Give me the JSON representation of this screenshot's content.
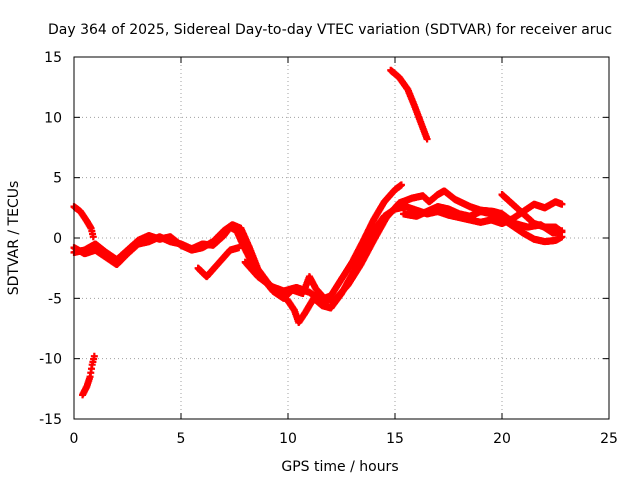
{
  "chart_data": {
    "type": "scatter",
    "title": "Day 364 of 2025, Sidereal Day-to-day VTEC variation (SDTVAR) for receiver aruc",
    "xlabel": "GPS time / hours",
    "ylabel": "SDTVAR / TECUs",
    "xlim": [
      0,
      25
    ],
    "ylim": [
      -15,
      15
    ],
    "xticks": [
      0,
      5,
      10,
      15,
      20,
      25
    ],
    "yticks": [
      -15,
      -10,
      -5,
      0,
      5,
      10,
      15
    ],
    "grid": true,
    "marker": "plus",
    "color": "#ff0000",
    "series": [
      {
        "name": "track-a",
        "points": [
          [
            0,
            2.6
          ],
          [
            0.3,
            2.2
          ],
          [
            0.6,
            1.4
          ],
          [
            0.8,
            0.8
          ],
          [
            0.9,
            0.1
          ]
        ]
      },
      {
        "name": "track-b",
        "points": [
          [
            0.4,
            -13
          ],
          [
            0.6,
            -12.3
          ],
          [
            0.75,
            -11.5
          ],
          [
            0.85,
            -10.5
          ],
          [
            0.95,
            -9.8
          ]
        ]
      },
      {
        "name": "track-c",
        "points": [
          [
            0,
            -0.8
          ],
          [
            0.5,
            -1.3
          ],
          [
            1,
            -1.0
          ],
          [
            1.5,
            -1.6
          ],
          [
            2,
            -2.2
          ],
          [
            2.5,
            -1.3
          ],
          [
            3,
            -0.5
          ],
          [
            3.5,
            -0.3
          ],
          [
            4,
            0.1
          ],
          [
            4.5,
            -0.3
          ],
          [
            5,
            -0.5
          ],
          [
            5.5,
            -0.9
          ],
          [
            6,
            -0.5
          ],
          [
            6.5,
            -0.6
          ],
          [
            7,
            0.2
          ],
          [
            7.3,
            0.9
          ],
          [
            7.6,
            0.6
          ],
          [
            7.9,
            -0.6
          ],
          [
            8.3,
            -2.0
          ],
          [
            8.8,
            -3.3
          ],
          [
            9.3,
            -4.4
          ],
          [
            9.8,
            -5.0
          ],
          [
            10.2,
            -4.3
          ],
          [
            10.7,
            -4.6
          ],
          [
            11,
            -3.2
          ],
          [
            11.3,
            -4.2
          ],
          [
            11.7,
            -5.0
          ],
          [
            12,
            -4.8
          ],
          [
            12.5,
            -3.4
          ],
          [
            13,
            -2.0
          ],
          [
            13.5,
            -0.3
          ],
          [
            14,
            1.5
          ],
          [
            14.5,
            3.0
          ],
          [
            15,
            4.0
          ],
          [
            15.3,
            4.4
          ]
        ]
      },
      {
        "name": "track-d",
        "points": [
          [
            0,
            -1.2
          ],
          [
            0.5,
            -1.0
          ],
          [
            1,
            -0.5
          ],
          [
            1.5,
            -1.2
          ],
          [
            2,
            -1.8
          ],
          [
            2.5,
            -1.0
          ],
          [
            3,
            -0.2
          ],
          [
            3.5,
            0.2
          ],
          [
            4,
            -0.1
          ],
          [
            4.5,
            0.1
          ],
          [
            5,
            -0.6
          ],
          [
            5.5,
            -1.0
          ],
          [
            6,
            -0.8
          ],
          [
            6.5,
            -0.3
          ],
          [
            7,
            0.6
          ],
          [
            7.4,
            1.1
          ],
          [
            7.8,
            0.8
          ],
          [
            8.2,
            -0.8
          ],
          [
            8.6,
            -2.6
          ],
          [
            9.1,
            -3.8
          ],
          [
            9.6,
            -4.6
          ],
          [
            10,
            -5.2
          ],
          [
            10.3,
            -6.0
          ],
          [
            10.5,
            -7.0
          ],
          [
            10.8,
            -6.2
          ],
          [
            11.2,
            -5.0
          ],
          [
            11.6,
            -5.6
          ],
          [
            12,
            -5.8
          ],
          [
            12.5,
            -4.6
          ],
          [
            13,
            -3.0
          ],
          [
            13.5,
            -1.2
          ],
          [
            14,
            0.6
          ],
          [
            14.5,
            1.8
          ],
          [
            15,
            2.4
          ],
          [
            15.5,
            2.6
          ],
          [
            16,
            2.3
          ],
          [
            16.5,
            2.0
          ],
          [
            17,
            2.2
          ],
          [
            17.5,
            1.9
          ],
          [
            18,
            1.7
          ],
          [
            18.5,
            1.5
          ],
          [
            19,
            1.3
          ],
          [
            19.5,
            1.5
          ],
          [
            20,
            1.2
          ],
          [
            20.5,
            1.6
          ],
          [
            21,
            2.2
          ],
          [
            21.5,
            2.8
          ],
          [
            22,
            2.5
          ],
          [
            22.5,
            3.0
          ],
          [
            22.8,
            2.8
          ]
        ]
      },
      {
        "name": "track-e",
        "points": [
          [
            5.8,
            -2.5
          ],
          [
            6.2,
            -3.2
          ],
          [
            6.5,
            -2.6
          ],
          [
            6.9,
            -1.8
          ],
          [
            7.3,
            -1.0
          ],
          [
            7.7,
            -0.8
          ]
        ]
      },
      {
        "name": "track-f",
        "points": [
          [
            8.0,
            -2.0
          ],
          [
            8.6,
            -3.2
          ],
          [
            9.2,
            -4.0
          ],
          [
            9.8,
            -4.4
          ],
          [
            10.4,
            -4.1
          ],
          [
            11,
            -4.5
          ],
          [
            11.6,
            -5.2
          ],
          [
            12.2,
            -5.1
          ],
          [
            12.8,
            -3.9
          ],
          [
            13.4,
            -2.2
          ],
          [
            14,
            -0.2
          ],
          [
            14.6,
            1.7
          ],
          [
            15.2,
            2.9
          ],
          [
            15.8,
            3.3
          ],
          [
            16.3,
            3.5
          ],
          [
            16.6,
            3.0
          ],
          [
            17,
            3.6
          ],
          [
            17.3,
            3.9
          ],
          [
            17.8,
            3.2
          ],
          [
            18.5,
            2.6
          ],
          [
            19,
            2.3
          ],
          [
            19.6,
            2.2
          ],
          [
            20,
            2.0
          ],
          [
            20.6,
            1.2
          ],
          [
            21.2,
            0.9
          ],
          [
            21.8,
            1.1
          ],
          [
            22.4,
            0.4
          ],
          [
            22.8,
            0.6
          ]
        ]
      },
      {
        "name": "track-g",
        "points": [
          [
            15.4,
            2.0
          ],
          [
            16,
            1.8
          ],
          [
            16.5,
            2.2
          ],
          [
            17,
            2.6
          ],
          [
            17.5,
            2.4
          ],
          [
            18,
            2.0
          ],
          [
            18.5,
            1.8
          ],
          [
            19,
            2.2
          ],
          [
            19.5,
            2.0
          ],
          [
            20,
            1.6
          ],
          [
            20.5,
            1.0
          ],
          [
            21,
            0.4
          ],
          [
            21.5,
            -0.1
          ],
          [
            22,
            -0.3
          ],
          [
            22.5,
            -0.2
          ],
          [
            22.8,
            0.1
          ]
        ]
      },
      {
        "name": "track-h",
        "points": [
          [
            20,
            3.6
          ],
          [
            20.5,
            2.8
          ],
          [
            21,
            2.0
          ],
          [
            21.5,
            1.2
          ],
          [
            22,
            0.9
          ],
          [
            22.5,
            0.9
          ],
          [
            22.8,
            0.5
          ]
        ]
      },
      {
        "name": "track-i",
        "points": [
          [
            14.8,
            13.9
          ],
          [
            15.2,
            13.3
          ],
          [
            15.6,
            12.3
          ],
          [
            15.9,
            11.0
          ],
          [
            16.2,
            9.6
          ],
          [
            16.5,
            8.2
          ]
        ]
      }
    ]
  }
}
